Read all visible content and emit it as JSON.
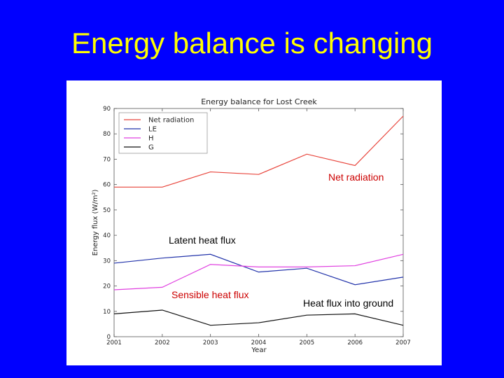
{
  "slide": {
    "title": "Energy balance is changing"
  },
  "chart_data": {
    "type": "line",
    "title": "Energy balance for Lost Creek",
    "xlabel": "Year",
    "ylabel": "Energy flux (W/m²)",
    "x": [
      2001,
      2002,
      2003,
      2004,
      2005,
      2006,
      2007
    ],
    "xlim": [
      2001,
      2007
    ],
    "ylim": [
      0,
      90
    ],
    "yticks": [
      0,
      10,
      20,
      30,
      40,
      50,
      60,
      70,
      80,
      90
    ],
    "grid": false,
    "legend_position": "top-left",
    "series": [
      {
        "name": "Net radiation",
        "color": "#E8453C",
        "values": [
          59,
          59,
          65,
          64,
          72,
          67.5,
          87
        ]
      },
      {
        "name": "LE",
        "color": "#2233AA",
        "values": [
          29,
          31,
          32.5,
          25.5,
          27,
          20.5,
          23.5
        ]
      },
      {
        "name": "H",
        "color": "#E040E0",
        "values": [
          18.5,
          19.5,
          28.5,
          27.5,
          27.5,
          28,
          32.5
        ]
      },
      {
        "name": "G",
        "color": "#111111",
        "values": [
          9,
          10.5,
          4.5,
          5.5,
          8.5,
          9,
          4.5
        ]
      }
    ],
    "annotations": [
      {
        "text": "Net radiation",
        "color": "#CC0000"
      },
      {
        "text": "Latent heat flux",
        "color": "#000000"
      },
      {
        "text": "Sensible heat flux",
        "color": "#CC0000"
      },
      {
        "text": "Heat flux into ground",
        "color": "#000000"
      }
    ]
  }
}
